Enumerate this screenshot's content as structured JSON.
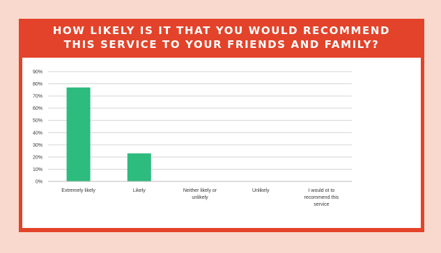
{
  "colors": {
    "background": "#f9d9cd",
    "card": "#e3432a",
    "bar": "#2dbb7e",
    "grid": "#d4d4d4"
  },
  "chart_data": {
    "type": "bar",
    "title_lines": [
      "HOW LIKELY IS IT THAT YOU WOULD RECOMMEND",
      "THIS SERVICE TO YOUR FRIENDS AND FAMILY?"
    ],
    "categories": [
      [
        "Extremely likely"
      ],
      [
        "Likely"
      ],
      [
        "Neither likely or",
        "unlikely"
      ],
      [
        "Unlikely"
      ],
      [
        "I would ot to",
        "recommend this",
        "service"
      ]
    ],
    "values": [
      77,
      23,
      0,
      0,
      0
    ],
    "ylim": [
      0,
      90
    ],
    "yticks": [
      0,
      10,
      20,
      30,
      40,
      50,
      60,
      70,
      80,
      90
    ],
    "ytick_labels": [
      "0%",
      "10%",
      "20%",
      "30%",
      "40%",
      "50%",
      "60%",
      "70%",
      "80%",
      "90%"
    ],
    "grid": true,
    "legend": "none"
  }
}
